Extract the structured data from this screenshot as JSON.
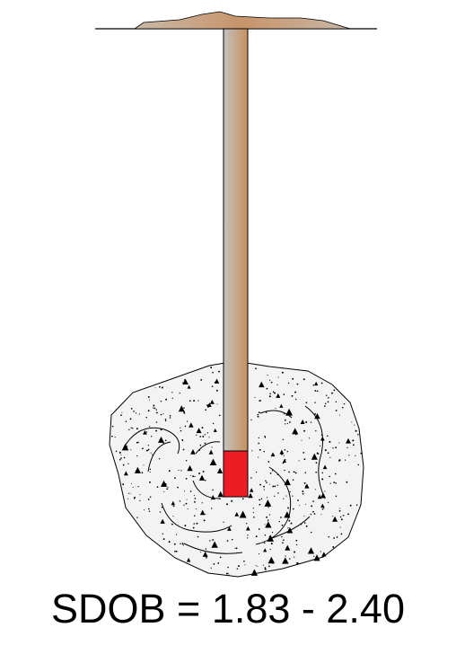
{
  "caption": "SDOB = 1.83 - 2.40",
  "colors": {
    "ground_line": "#000000",
    "surface_mound": "#c8946a",
    "borehole_light": "#c4c2c0",
    "borehole_dark": "#c6915e",
    "charge": "#ee1c24",
    "crater_fill": "#f3f3f3",
    "crater_outline": "#000000"
  }
}
